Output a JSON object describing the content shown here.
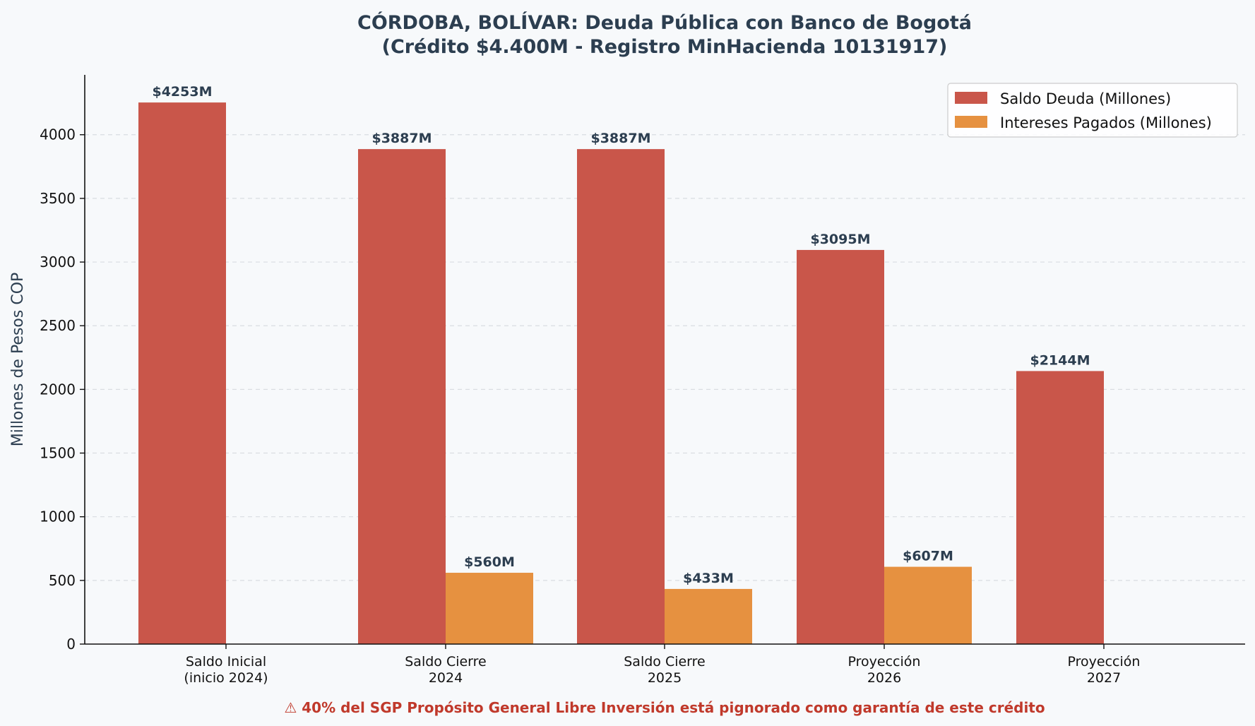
{
  "chart_data": {
    "type": "bar",
    "title_line1": "CÓRDOBA, BOLÍVAR: Deuda Pública con Banco de Bogotá",
    "title_line2": "(Crédito $4.400M - Registro MinHacienda 10131917)",
    "ylabel": "Millones de Pesos COP",
    "xlabel": "",
    "ylim": [
      0,
      4470
    ],
    "yticks": [
      0,
      500,
      1000,
      1500,
      2000,
      2500,
      3000,
      3500,
      4000
    ],
    "grid": "horizontal-dashed",
    "legend_position": "top-right",
    "categories": [
      [
        "Saldo Inicial",
        "(inicio 2024)"
      ],
      [
        "Saldo Cierre",
        "2024"
      ],
      [
        "Saldo Cierre",
        "2025"
      ],
      [
        "Proyección",
        "2026"
      ],
      [
        "Proyección",
        "2027"
      ]
    ],
    "series": [
      {
        "name": "Saldo Deuda (Millones)",
        "color": "#c9564a",
        "values": [
          4253,
          3887,
          3887,
          3095,
          2144
        ],
        "labels": [
          "$4253M",
          "$3887M",
          "$3887M",
          "$3095M",
          "$2144M"
        ]
      },
      {
        "name": "Intereses Pagados (Millones)",
        "color": "#e69140",
        "values": [
          null,
          560,
          433,
          607,
          null
        ],
        "labels": [
          null,
          "$560M",
          "$433M",
          "$607M",
          null
        ]
      }
    ],
    "footnote": "⚠ 40% del SGP Propósito General Libre Inversión está pignorado como garantía de este crédito"
  }
}
